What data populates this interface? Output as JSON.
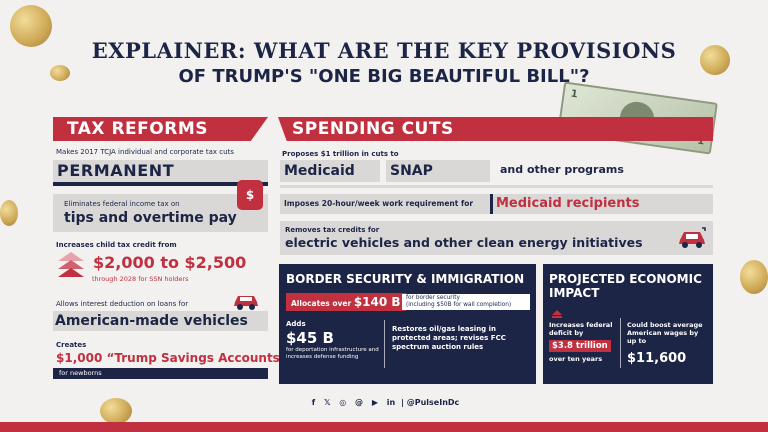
{
  "title": {
    "line1": "EXPLAINER: WHAT ARE THE KEY PROVISIONS",
    "line2": "OF TRUMP'S \"ONE BIG BEAUTIFUL BILL\"?"
  },
  "bill": {
    "n1": "1",
    "n2": "1"
  },
  "tax": {
    "header": "TAX REFORMS",
    "permanent_note": "Makes 2017 TCJA individual and corporate tax cuts",
    "permanent": "PERMANENT",
    "tips_note": "Eliminates federal income tax on",
    "tips": "tips and overtime pay",
    "jar_symbol": "$",
    "child_note": "Increases child tax credit from",
    "child_amount": "$2,000 to $2,500",
    "child_sub": "through 2028 for SSN holders",
    "interest_note": "Allows interest deduction on loans for",
    "vehicles": "American-made vehicles",
    "creates": "Creates",
    "savings": "$1,000 “Trump Savings Accounts”",
    "newborns": "for newborns"
  },
  "spending": {
    "header": "SPENDING CUTS",
    "proposes": "Proposes $1 trillion in cuts to",
    "medicaid": "Medicaid",
    "snap": "SNAP",
    "other": "and other programs",
    "work_req": "Imposes 20-hour/week work requirement for",
    "recipients": "Medicaid recipients",
    "ev_note": "Removes tax credits for",
    "ev": "electric vehicles and other clean energy initiatives"
  },
  "border": {
    "title": "BORDER SECURITY & IMMIGRATION",
    "alloc_label": "Allocates over",
    "alloc_amount": "$140 B",
    "alloc_note1": "for border security",
    "alloc_note2": "(including $50B for wall completion)",
    "adds": "Adds",
    "adds_amount": "$45 B",
    "adds_note": "for deportation infrastructure and increases defense funding",
    "oil": "Restores oil/gas leasing in protected areas; revises FCC spectrum auction rules"
  },
  "impact": {
    "title": "PROJECTED ECONOMIC IMPACT",
    "left_note": "Increases federal deficit by",
    "left_amount": "$3.8 trillion",
    "left_sub": "over ten years",
    "right_note": "Could boost average American wages by up to",
    "right_amount": "$11,600"
  },
  "footer": {
    "icons": [
      "facebook-icon",
      "x-icon",
      "instagram-icon",
      "threads-icon",
      "youtube-icon",
      "linkedin-icon"
    ],
    "separator": "|",
    "handle": "@PulseInDc"
  },
  "colors": {
    "navy": "#1d2547",
    "red": "#c0303f",
    "gray": "#d9d8d6",
    "bg": "#f2f1ef"
  }
}
